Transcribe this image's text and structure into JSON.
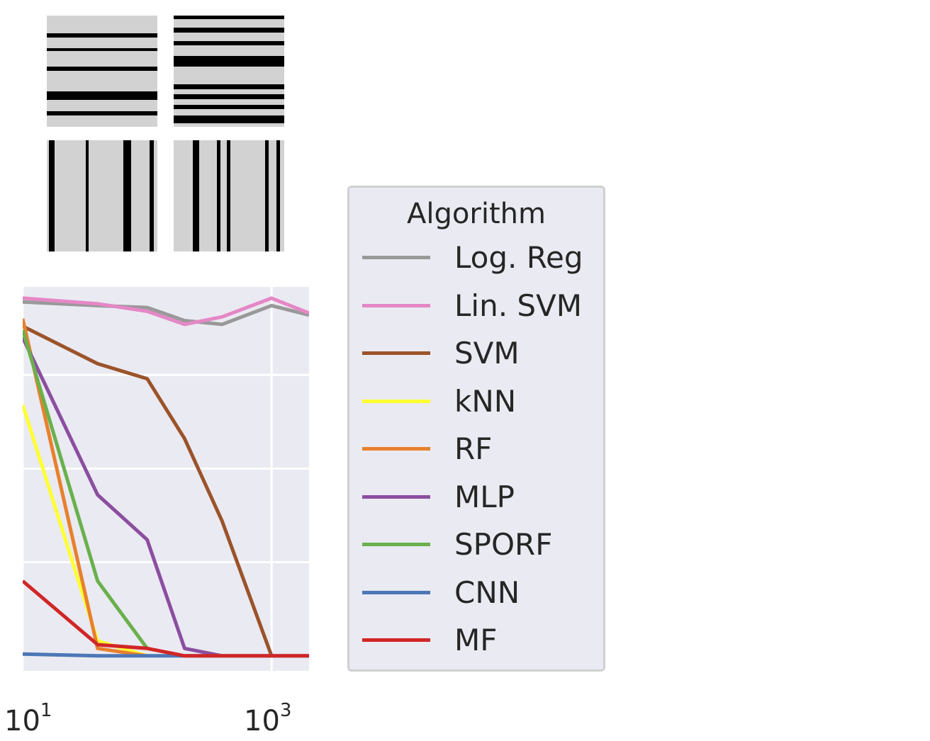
{
  "samples": [
    {
      "name": "horizontal-sample-1",
      "orientation": "horizontal",
      "bars": [
        [
          0.16,
          0.04
        ],
        [
          0.29,
          0.03
        ],
        [
          0.46,
          0.04
        ],
        [
          0.68,
          0.08
        ],
        [
          0.86,
          0.04
        ]
      ]
    },
    {
      "name": "horizontal-sample-2",
      "orientation": "horizontal",
      "bars": [
        [
          0.0,
          0.03
        ],
        [
          0.11,
          0.04
        ],
        [
          0.23,
          0.04
        ],
        [
          0.36,
          0.1
        ],
        [
          0.62,
          0.04
        ],
        [
          0.71,
          0.04
        ],
        [
          0.8,
          0.04
        ],
        [
          0.9,
          0.07
        ]
      ]
    },
    {
      "name": "vertical-sample-1",
      "orientation": "vertical",
      "bars": [
        [
          0.02,
          0.05
        ],
        [
          0.35,
          0.03
        ],
        [
          0.69,
          0.07
        ],
        [
          0.93,
          0.04
        ]
      ]
    },
    {
      "name": "vertical-sample-2",
      "orientation": "vertical",
      "bars": [
        [
          0.17,
          0.06
        ],
        [
          0.39,
          0.03
        ],
        [
          0.48,
          0.03
        ],
        [
          0.83,
          0.03
        ],
        [
          0.93,
          0.03
        ]
      ]
    }
  ],
  "chart_data": {
    "type": "line",
    "xscale": "log",
    "xlim": [
      10,
      2000
    ],
    "ylim": [
      0,
      1
    ],
    "x_tick_values": [
      10,
      1000
    ],
    "x_tick_labels": [
      {
        "base": "10",
        "exp": "1"
      },
      {
        "base": "10",
        "exp": "3"
      }
    ],
    "grid": true,
    "legend_title": "Algorithm",
    "legend_placement": "right",
    "series": [
      {
        "name": "Log. Reg",
        "color": "#999999",
        "x": [
          10,
          40,
          100,
          200,
          400,
          1000,
          2000
        ],
        "y": [
          0.945,
          0.935,
          0.93,
          0.895,
          0.885,
          0.935,
          0.91
        ]
      },
      {
        "name": "Lin. SVM",
        "color": "#e587c6",
        "x": [
          10,
          40,
          100,
          200,
          400,
          1000,
          2000
        ],
        "y": [
          0.955,
          0.94,
          0.92,
          0.885,
          0.905,
          0.955,
          0.915
        ]
      },
      {
        "name": "SVM",
        "color": "#9b532a",
        "x": [
          10,
          40,
          100,
          200,
          400,
          1000
        ],
        "y": [
          0.88,
          0.78,
          0.74,
          0.58,
          0.36,
          0.0
        ]
      },
      {
        "name": "kNN",
        "color": "#ffff33",
        "x": [
          10,
          40,
          100
        ],
        "y": [
          0.67,
          0.04,
          0.0
        ]
      },
      {
        "name": "RF",
        "color": "#e8802d",
        "x": [
          10,
          40,
          100
        ],
        "y": [
          0.9,
          0.02,
          0.0
        ]
      },
      {
        "name": "MLP",
        "color": "#8b4ea0",
        "x": [
          10,
          40,
          100,
          200,
          400
        ],
        "y": [
          0.85,
          0.43,
          0.31,
          0.02,
          0.0
        ]
      },
      {
        "name": "SPORF",
        "color": "#6ab04c",
        "x": [
          10,
          40,
          100
        ],
        "y": [
          0.87,
          0.2,
          0.02
        ]
      },
      {
        "name": "CNN",
        "color": "#4c77b6",
        "x": [
          10,
          40,
          100,
          200,
          400,
          1000,
          2000
        ],
        "y": [
          0.005,
          0.0,
          0.0,
          0.0,
          0.0,
          0.0,
          0.0
        ]
      },
      {
        "name": "MF",
        "color": "#d12626",
        "x": [
          10,
          40,
          100,
          200,
          400,
          1000,
          2000
        ],
        "y": [
          0.2,
          0.03,
          0.02,
          0.0,
          0.0,
          0.0,
          0.0
        ]
      }
    ]
  }
}
